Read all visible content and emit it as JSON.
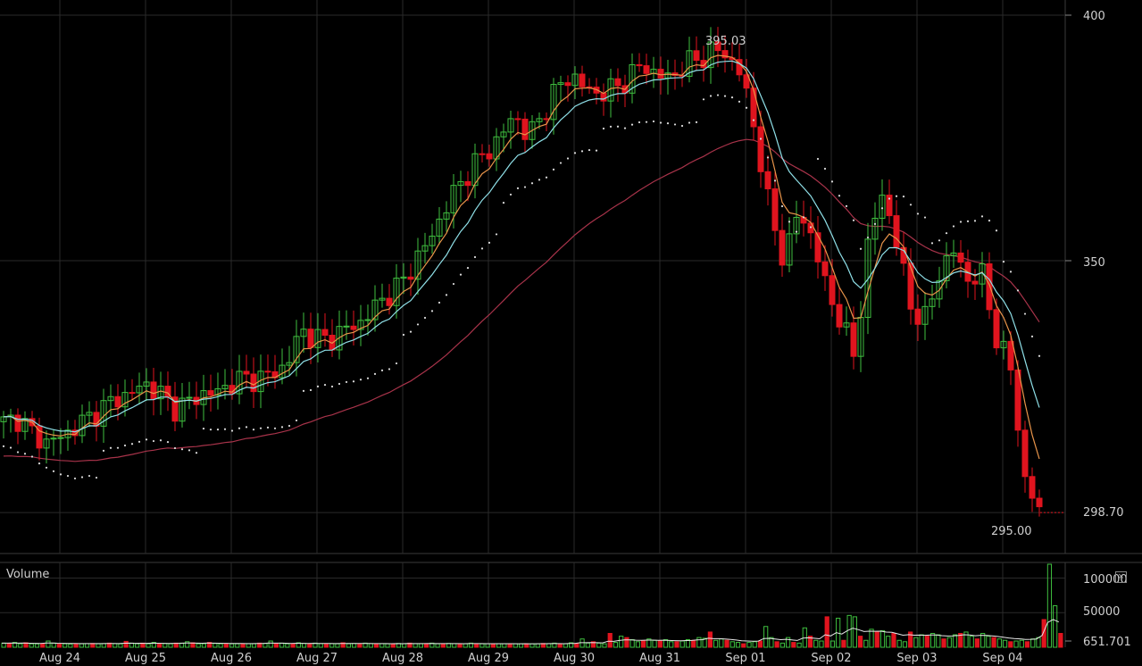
{
  "chart_data": {
    "type": "candlestick",
    "title": "",
    "price_axis": {
      "ticks": [
        400,
        350
      ],
      "current_price": "298.70",
      "ylim": [
        290,
        402
      ]
    },
    "x_ticks": [
      "Aug 24",
      "Aug 25",
      "Aug 26",
      "Aug 27",
      "Aug 28",
      "Aug 29",
      "Aug 30",
      "Aug 31",
      "Sep 01",
      "Sep 02",
      "Sep 03",
      "Sep 04"
    ],
    "annotations": {
      "high": "395.03",
      "low": "295.00"
    },
    "colors": {
      "up": "#3fbf3f",
      "down": "#e0141e",
      "ema_fast": "#e8944a",
      "ema_slow": "#8fe0e8",
      "sma_long": "#a8334a",
      "psar": "#dcdcdc",
      "grid": "#2a2a2a"
    },
    "price_path": [
      [
        0,
        317
      ],
      [
        1,
        318
      ],
      [
        2,
        315
      ],
      [
        3,
        313
      ],
      [
        4,
        314
      ],
      [
        5,
        316
      ],
      [
        6,
        318
      ],
      [
        7,
        320
      ],
      [
        8,
        322
      ],
      [
        9,
        323
      ],
      [
        10,
        325
      ],
      [
        11,
        323
      ],
      [
        12,
        320
      ],
      [
        13,
        321
      ],
      [
        14,
        323
      ],
      [
        15,
        323
      ],
      [
        16,
        325
      ],
      [
        17,
        326
      ],
      [
        18,
        326
      ],
      [
        19,
        327
      ],
      [
        20,
        329
      ],
      [
        21,
        336
      ],
      [
        22,
        334
      ],
      [
        23,
        334
      ],
      [
        24,
        336
      ],
      [
        25,
        337
      ],
      [
        26,
        340
      ],
      [
        27,
        343
      ],
      [
        28,
        345
      ],
      [
        29,
        350
      ],
      [
        30,
        354
      ],
      [
        31,
        360
      ],
      [
        32,
        365
      ],
      [
        33,
        369
      ],
      [
        34,
        372
      ],
      [
        35,
        375
      ],
      [
        36,
        380
      ],
      [
        37,
        375
      ],
      [
        38,
        380
      ],
      [
        39,
        385
      ],
      [
        40,
        388
      ],
      [
        41,
        385
      ],
      [
        42,
        384
      ],
      [
        43,
        385
      ],
      [
        44,
        387
      ],
      [
        45,
        390
      ],
      [
        46,
        388
      ],
      [
        47,
        387
      ],
      [
        48,
        390
      ],
      [
        49,
        391
      ],
      [
        50,
        393
      ],
      [
        51,
        392
      ],
      [
        52,
        388
      ],
      [
        53,
        376
      ],
      [
        54,
        360
      ],
      [
        55,
        350
      ],
      [
        56,
        360
      ],
      [
        57,
        355
      ],
      [
        58,
        344
      ],
      [
        59,
        338
      ],
      [
        60,
        330
      ],
      [
        61,
        355
      ],
      [
        62,
        364
      ],
      [
        63,
        353
      ],
      [
        64,
        340
      ],
      [
        65,
        338
      ],
      [
        66,
        348
      ],
      [
        67,
        352
      ],
      [
        68,
        346
      ],
      [
        69,
        347
      ],
      [
        70,
        334
      ],
      [
        71,
        328
      ],
      [
        72,
        305
      ],
      [
        73,
        299
      ]
    ],
    "volume": {
      "label": "Volume",
      "ticks": [
        "100000",
        "50000"
      ],
      "current": "651.701",
      "ylim": [
        0,
        120000
      ],
      "values": [
        6000,
        5500,
        7000,
        5000,
        6500,
        5000,
        4800,
        5200,
        9000,
        6000,
        4500,
        5000,
        4600,
        4800,
        5000,
        5200,
        5500,
        5000,
        5300,
        6000,
        5200,
        4900,
        8500,
        6000,
        5000,
        6000,
        5000,
        7000,
        5200,
        5400,
        5000,
        6000,
        6000,
        8000,
        6500,
        5000,
        5000,
        7000,
        5500,
        5000,
        5200,
        5000,
        5000,
        5000,
        5100,
        5000,
        6000,
        5500,
        9000,
        5200,
        6000,
        5000,
        4800,
        6500,
        5500,
        5000,
        6000,
        5200,
        5000,
        5200,
        5000,
        6500,
        5000,
        5400,
        5000,
        6000,
        5200,
        5000,
        5200,
        5000,
        5000,
        5500,
        5000,
        6000,
        5200,
        5000,
        5200,
        6000,
        5000,
        5000,
        5500,
        5200,
        5000,
        5000,
        6000,
        5000,
        5000,
        5100,
        5000,
        5000,
        5000,
        5200,
        5000,
        5000,
        5200,
        5000,
        5000,
        5500,
        5300,
        6000,
        5000,
        5000,
        6500,
        5400,
        12000,
        6000,
        8000,
        6000,
        5000,
        20000,
        7000,
        16000,
        14000,
        11000,
        8000,
        9000,
        12000,
        10000,
        9000,
        11000,
        8000,
        8000,
        9000,
        11000,
        10000,
        14000,
        13000,
        22000,
        10000,
        12000,
        10000,
        8000,
        7000,
        5000,
        7000,
        8000,
        9000,
        30000,
        14000,
        8000,
        6000,
        14000,
        7000,
        6000,
        28000,
        16000,
        10000,
        9000,
        44000,
        9000,
        42000,
        10000,
        46000,
        44000,
        16000,
        10000,
        26000,
        22000,
        24000,
        16000,
        20000,
        10000,
        8000,
        22000,
        14000,
        18000,
        16000,
        20000,
        18000,
        12000,
        14000,
        18000,
        20000,
        22000,
        16000,
        12000,
        20000,
        16000,
        14000,
        12000,
        10000,
        8000,
        9000,
        10000,
        8000,
        12000,
        14000,
        40000,
        120000,
        60000,
        20000
      ]
    }
  }
}
